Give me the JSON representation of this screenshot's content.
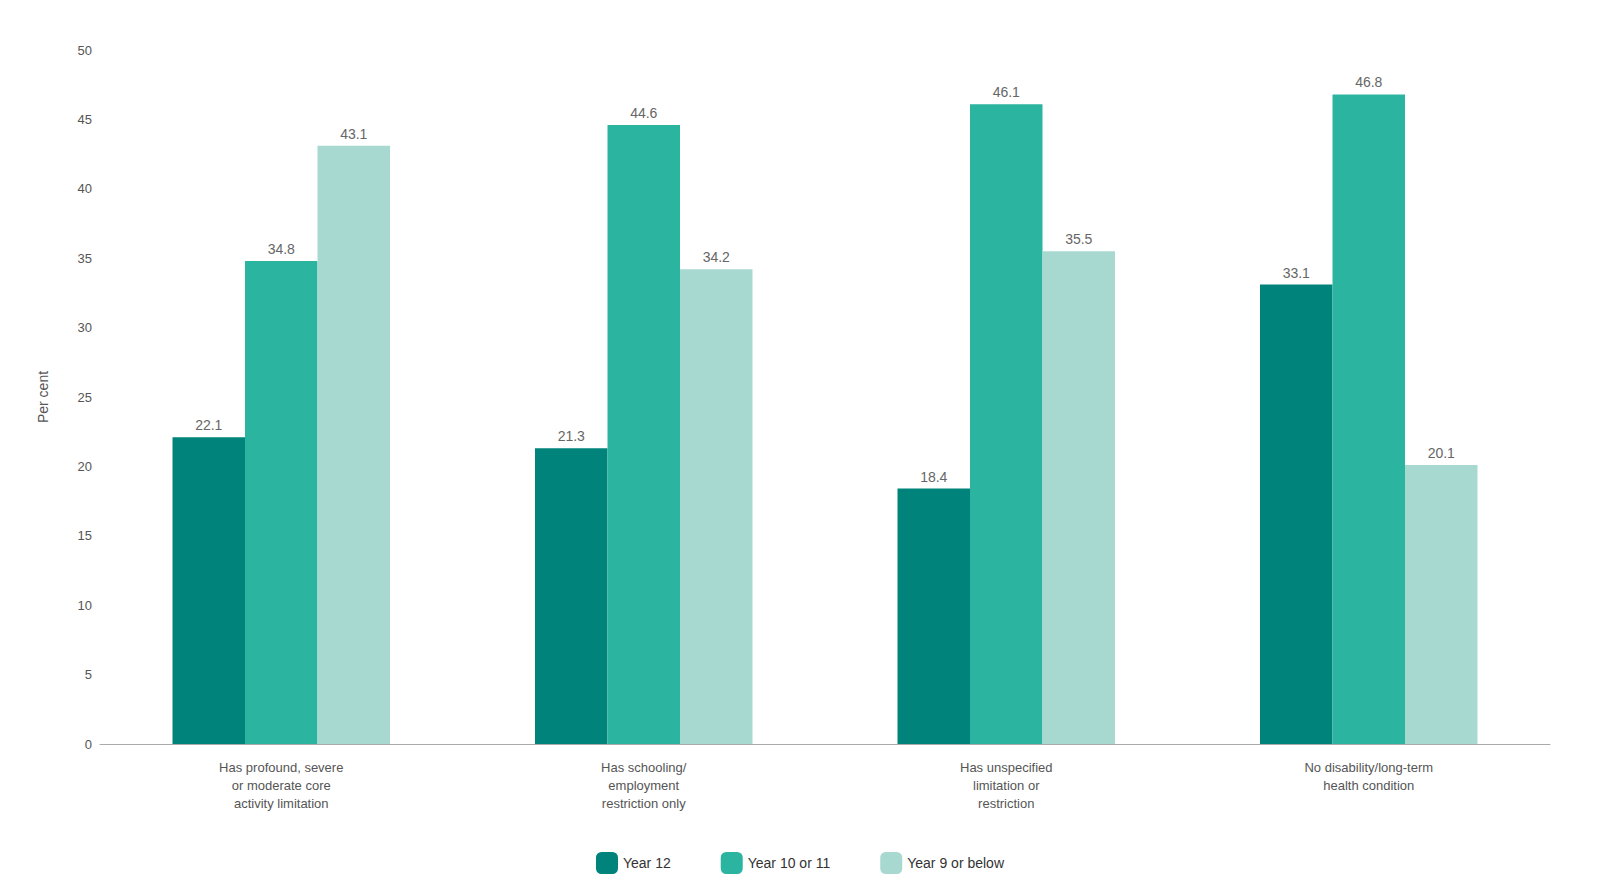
{
  "chart_data": {
    "type": "bar",
    "ylabel": "Per cent",
    "categories": [
      "Has profound, severe\nor moderate core\nactivity limitation",
      "Has schooling/\nemployment\nrestriction only",
      "Has unspecified\nlimitation or\nrestriction",
      "No disability/long-term\nhealth condition"
    ],
    "series": [
      {
        "name": "Year 12",
        "color": "#00837A",
        "values": [
          22.1,
          21.3,
          18.4,
          33.1
        ]
      },
      {
        "name": "Year 10 or 11",
        "color": "#2BB5A0",
        "values": [
          34.8,
          44.6,
          46.1,
          46.8
        ]
      },
      {
        "name": "Year 9 or below",
        "color": "#A8D9D0",
        "values": [
          43.1,
          34.2,
          35.5,
          20.1
        ]
      }
    ],
    "ylim": [
      0,
      50
    ],
    "yticks": [
      0,
      5,
      10,
      15,
      20,
      25,
      30,
      35,
      40,
      45,
      50
    ],
    "grid": false,
    "legend": "bottom",
    "data_labels": true
  }
}
